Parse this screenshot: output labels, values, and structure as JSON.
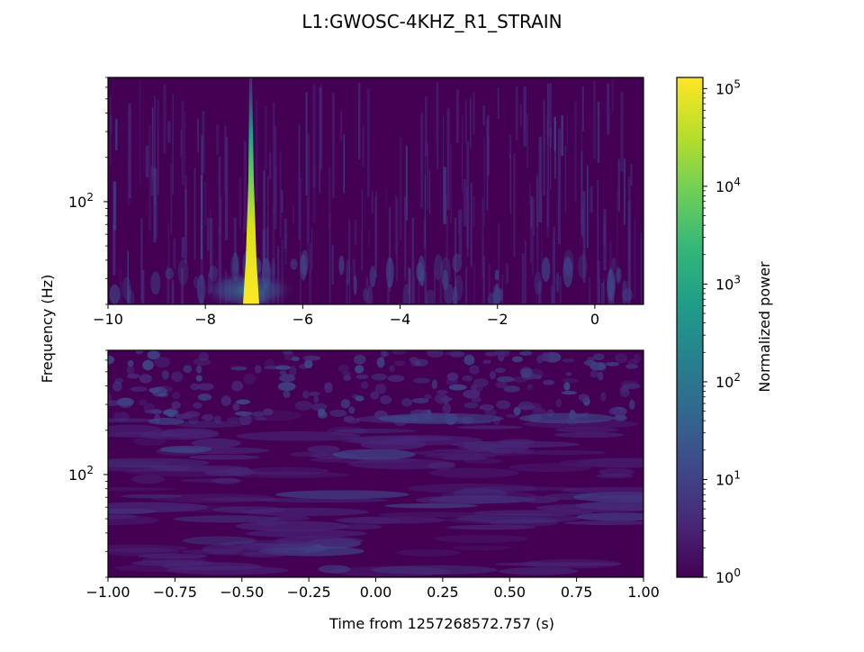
{
  "figure": {
    "title": "L1:GWOSC-4KHZ_R1_STRAIN",
    "ylabel": "Frequency (Hz)",
    "xlabel": "Time from 1257268572.757 (s)",
    "colorbar_label": "Normalized power"
  },
  "chart_data": [
    {
      "type": "heatmap",
      "panel": "top",
      "title": "",
      "xlabel": "",
      "ylabel": "Frequency (Hz)",
      "xlim": [
        -10,
        1
      ],
      "ylim": [
        20,
        700
      ],
      "yscale": "log",
      "x_ticks": [
        -10,
        -8,
        -6,
        -4,
        -2,
        0
      ],
      "x_tick_labels": [
        "−10",
        "−8",
        "−6",
        "−4",
        "−2",
        "0"
      ],
      "y_ticks": [
        100
      ],
      "y_tick_labels": [
        "10^2"
      ],
      "features": [
        {
          "kind": "chirp",
          "time": -7.05,
          "f_low": 20,
          "f_high": 700,
          "peak_power": 100000
        },
        {
          "kind": "low-frequency blob",
          "time_range": [
            -7.6,
            -6.5
          ],
          "f_range": [
            20,
            35
          ],
          "power": 200
        }
      ],
      "colormap": "viridis"
    },
    {
      "type": "heatmap",
      "panel": "bottom",
      "title": "",
      "xlabel": "Time from 1257268572.757 (s)",
      "ylabel": "Frequency (Hz)",
      "xlim": [
        -1.0,
        1.0
      ],
      "ylim": [
        20,
        700
      ],
      "yscale": "log",
      "x_ticks": [
        -1.0,
        -0.75,
        -0.5,
        -0.25,
        0.0,
        0.25,
        0.5,
        0.75,
        1.0
      ],
      "x_tick_labels": [
        "−1.00",
        "−0.75",
        "−0.50",
        "−0.25",
        "0.00",
        "0.25",
        "0.50",
        "0.75",
        "1.00"
      ],
      "y_ticks": [
        100
      ],
      "y_tick_labels": [
        "10^2"
      ],
      "features": [
        {
          "kind": "background noise",
          "power_range": [
            1,
            30
          ]
        }
      ],
      "colormap": "viridis"
    }
  ],
  "colorbar": {
    "scale": "log",
    "range": [
      1,
      130000
    ],
    "ticks": [
      1,
      10,
      100,
      1000,
      10000,
      100000
    ],
    "tick_bases": [
      "10",
      "10",
      "10",
      "10",
      "10",
      "10"
    ],
    "tick_exponents": [
      "0",
      "1",
      "2",
      "3",
      "4",
      "5"
    ],
    "colormap": "viridis",
    "label": "Normalized power"
  },
  "colors": {
    "background": "#440154",
    "viridis": [
      "#440154",
      "#482878",
      "#3e4989",
      "#31688e",
      "#26828e",
      "#1f9e89",
      "#35b779",
      "#6ece58",
      "#b5de2b",
      "#fde725"
    ]
  }
}
